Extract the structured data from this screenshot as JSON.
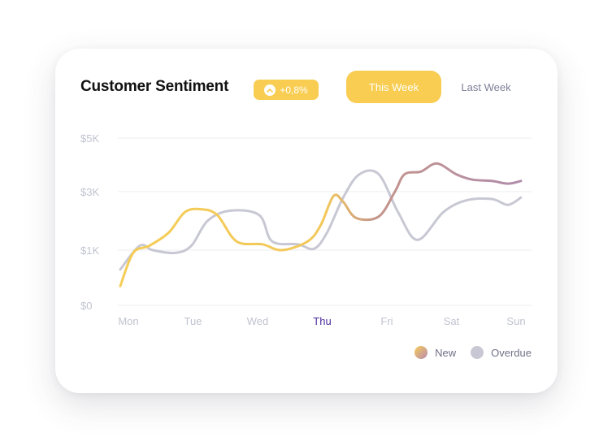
{
  "header": {
    "title": "Customer Sentiment",
    "badge": {
      "value": "+0,8%",
      "icon": "chevron-up-icon"
    }
  },
  "tabs": [
    {
      "label": "This Week",
      "active": true
    },
    {
      "label": "Last Week",
      "active": false
    }
  ],
  "legend": [
    {
      "label": "New"
    },
    {
      "label": "Overdue"
    }
  ],
  "colors": {
    "accent": "#f8cd51",
    "new_start": "#f5cd56",
    "new_end": "#b98ab2",
    "overdue": "#c8c8d4",
    "highlight_day": "#4b2aa0",
    "axis_text": "#c0c3cf",
    "grid": "#ededf1"
  },
  "chart_data": {
    "type": "line",
    "title": "Customer Sentiment",
    "xlabel": "",
    "ylabel": "",
    "categories": [
      "Mon",
      "Tue",
      "Wed",
      "Thu",
      "Fri",
      "Sat",
      "Sun"
    ],
    "highlight_category": "Thu",
    "y_ticks": [
      {
        "label": "$0",
        "value": 0
      },
      {
        "label": "$1K",
        "value": 1000
      },
      {
        "label": "$3K",
        "value": 3000
      },
      {
        "label": "$5K",
        "value": 5000
      }
    ],
    "grid": true,
    "legend_position": "bottom-right",
    "series": [
      {
        "name": "New",
        "points": [
          [
            0.0,
            350
          ],
          [
            0.2,
            950
          ],
          [
            0.45,
            1150
          ],
          [
            0.75,
            1600
          ],
          [
            1.0,
            2300
          ],
          [
            1.25,
            2400
          ],
          [
            1.5,
            2200
          ],
          [
            1.8,
            1300
          ],
          [
            2.2,
            1200
          ],
          [
            2.5,
            1000
          ],
          [
            2.9,
            1300
          ],
          [
            3.1,
            1850
          ],
          [
            3.3,
            2850
          ],
          [
            3.45,
            2650
          ],
          [
            3.65,
            2100
          ],
          [
            4.0,
            2150
          ],
          [
            4.25,
            3000
          ],
          [
            4.4,
            3650
          ],
          [
            4.65,
            3750
          ],
          [
            4.9,
            4050
          ],
          [
            5.2,
            3650
          ],
          [
            5.45,
            3450
          ],
          [
            5.75,
            3400
          ],
          [
            6.0,
            3300
          ],
          [
            6.2,
            3400
          ]
        ]
      },
      {
        "name": "Overdue",
        "points": [
          [
            0.0,
            650
          ],
          [
            0.3,
            1150
          ],
          [
            0.5,
            1000
          ],
          [
            0.85,
            950
          ],
          [
            1.1,
            1150
          ],
          [
            1.35,
            2000
          ],
          [
            1.7,
            2350
          ],
          [
            2.15,
            2200
          ],
          [
            2.35,
            1300
          ],
          [
            2.75,
            1200
          ],
          [
            3.0,
            1050
          ],
          [
            3.2,
            1600
          ],
          [
            3.45,
            2800
          ],
          [
            3.7,
            3650
          ],
          [
            4.0,
            3650
          ],
          [
            4.3,
            2300
          ],
          [
            4.6,
            1350
          ],
          [
            5.0,
            2300
          ],
          [
            5.35,
            2700
          ],
          [
            5.75,
            2750
          ],
          [
            6.0,
            2550
          ],
          [
            6.2,
            2800
          ]
        ]
      }
    ]
  }
}
